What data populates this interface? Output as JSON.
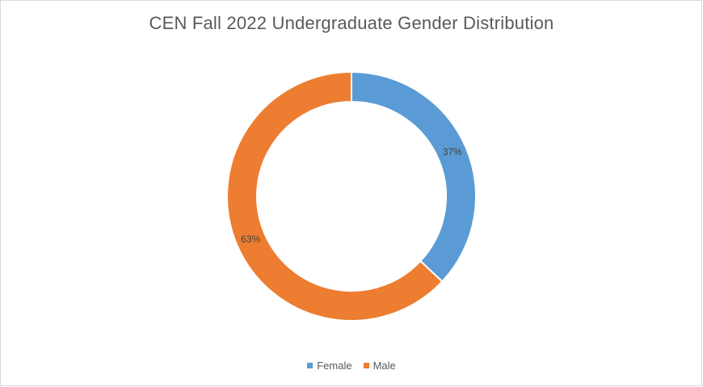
{
  "chart_data": {
    "type": "pie",
    "variant": "donut",
    "title": "CEN Fall 2022 Undergraduate Gender Distribution",
    "categories": [
      "Female",
      "Male"
    ],
    "values": [
      37,
      63
    ],
    "data_labels": [
      "37%",
      "63%"
    ],
    "colors": [
      "#5b9bd5",
      "#ed7d31"
    ],
    "legend_position": "bottom",
    "start_angle_deg": 0,
    "direction": "clockwise"
  }
}
